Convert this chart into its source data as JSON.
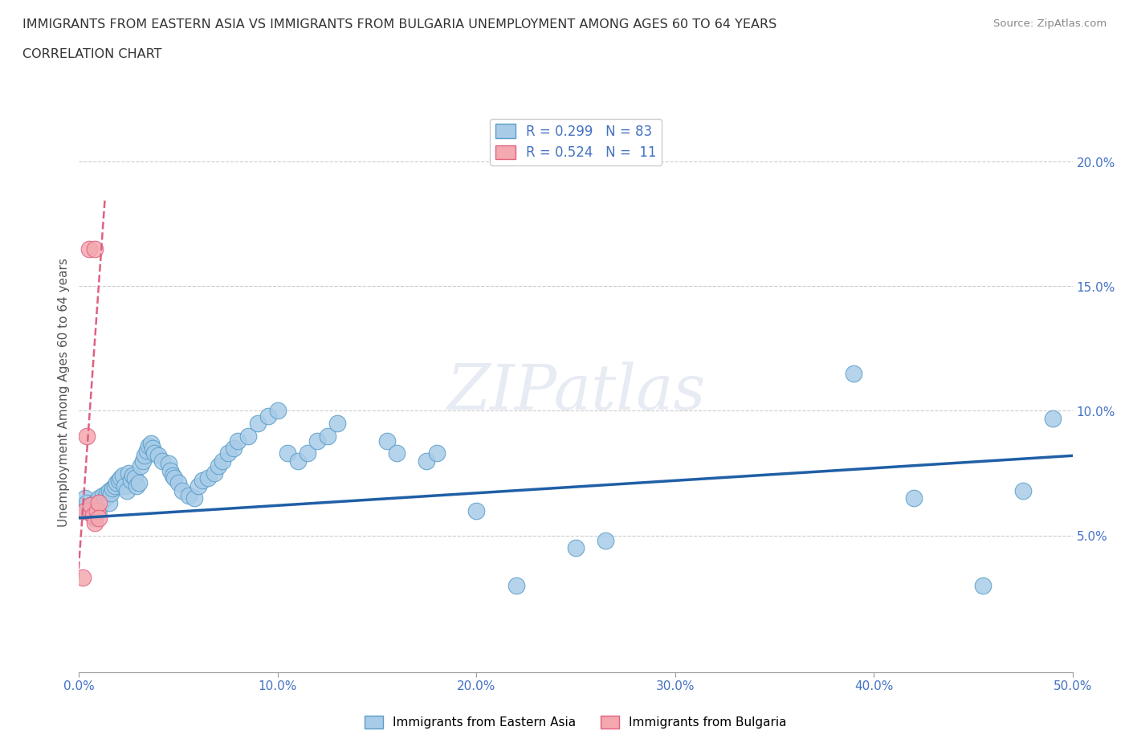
{
  "title_line1": "IMMIGRANTS FROM EASTERN ASIA VS IMMIGRANTS FROM BULGARIA UNEMPLOYMENT AMONG AGES 60 TO 64 YEARS",
  "title_line2": "CORRELATION CHART",
  "source_text": "Source: ZipAtlas.com",
  "ylabel": "Unemployment Among Ages 60 to 64 years",
  "xlim": [
    0,
    0.5
  ],
  "ylim": [
    -0.005,
    0.22
  ],
  "xticks": [
    0.0,
    0.1,
    0.2,
    0.3,
    0.4,
    0.5
  ],
  "yticks": [
    0.05,
    0.1,
    0.15,
    0.2
  ],
  "xticklabels": [
    "0.0%",
    "10.0%",
    "20.0%",
    "30.0%",
    "40.0%",
    "50.0%"
  ],
  "yticklabels": [
    "5.0%",
    "10.0%",
    "15.0%",
    "20.0%"
  ],
  "legend1_r": "0.299",
  "legend1_n": "83",
  "legend2_r": "0.524",
  "legend2_n": "11",
  "blue_color": "#a8cce8",
  "blue_edge": "#5b9ec9",
  "blue_line_color": "#1f5fa6",
  "pink_color": "#f4a8b0",
  "pink_edge": "#e06080",
  "pink_line_color": "#e06080",
  "watermark": "ZIPatlas",
  "blue_scatter_x": [
    0.002,
    0.003,
    0.004,
    0.005,
    0.006,
    0.006,
    0.007,
    0.008,
    0.008,
    0.009,
    0.01,
    0.01,
    0.011,
    0.012,
    0.013,
    0.014,
    0.015,
    0.015,
    0.016,
    0.017,
    0.018,
    0.019,
    0.02,
    0.021,
    0.022,
    0.023,
    0.024,
    0.025,
    0.026,
    0.027,
    0.028,
    0.029,
    0.03,
    0.031,
    0.032,
    0.033,
    0.034,
    0.035,
    0.036,
    0.037,
    0.038,
    0.04,
    0.042,
    0.045,
    0.046,
    0.047,
    0.048,
    0.05,
    0.052,
    0.055,
    0.058,
    0.06,
    0.062,
    0.065,
    0.068,
    0.07,
    0.072,
    0.075,
    0.078,
    0.08,
    0.085,
    0.09,
    0.095,
    0.1,
    0.105,
    0.11,
    0.115,
    0.12,
    0.125,
    0.13,
    0.155,
    0.16,
    0.175,
    0.18,
    0.2,
    0.22,
    0.25,
    0.265,
    0.39,
    0.42,
    0.455,
    0.475,
    0.49
  ],
  "blue_scatter_y": [
    0.06,
    0.065,
    0.063,
    0.06,
    0.062,
    0.059,
    0.061,
    0.063,
    0.057,
    0.064,
    0.065,
    0.06,
    0.063,
    0.066,
    0.065,
    0.067,
    0.068,
    0.063,
    0.067,
    0.069,
    0.07,
    0.071,
    0.072,
    0.073,
    0.074,
    0.07,
    0.068,
    0.075,
    0.072,
    0.074,
    0.073,
    0.07,
    0.071,
    0.078,
    0.08,
    0.082,
    0.084,
    0.086,
    0.087,
    0.085,
    0.083,
    0.082,
    0.08,
    0.079,
    0.076,
    0.074,
    0.073,
    0.071,
    0.068,
    0.066,
    0.065,
    0.07,
    0.072,
    0.073,
    0.075,
    0.078,
    0.08,
    0.083,
    0.085,
    0.088,
    0.09,
    0.095,
    0.098,
    0.1,
    0.083,
    0.08,
    0.083,
    0.088,
    0.09,
    0.095,
    0.088,
    0.083,
    0.08,
    0.083,
    0.06,
    0.03,
    0.045,
    0.048,
    0.115,
    0.065,
    0.03,
    0.068,
    0.097
  ],
  "pink_scatter_x": [
    0.002,
    0.003,
    0.004,
    0.005,
    0.006,
    0.007,
    0.008,
    0.008,
    0.009,
    0.01,
    0.01
  ],
  "pink_scatter_y": [
    0.033,
    0.06,
    0.09,
    0.165,
    0.062,
    0.058,
    0.055,
    0.165,
    0.06,
    0.063,
    0.057
  ],
  "blue_trend_x": [
    0.0,
    0.5
  ],
  "blue_trend_y": [
    0.057,
    0.082
  ],
  "pink_trend_x": [
    -0.001,
    0.013
  ],
  "pink_trend_y": [
    0.028,
    0.185
  ]
}
